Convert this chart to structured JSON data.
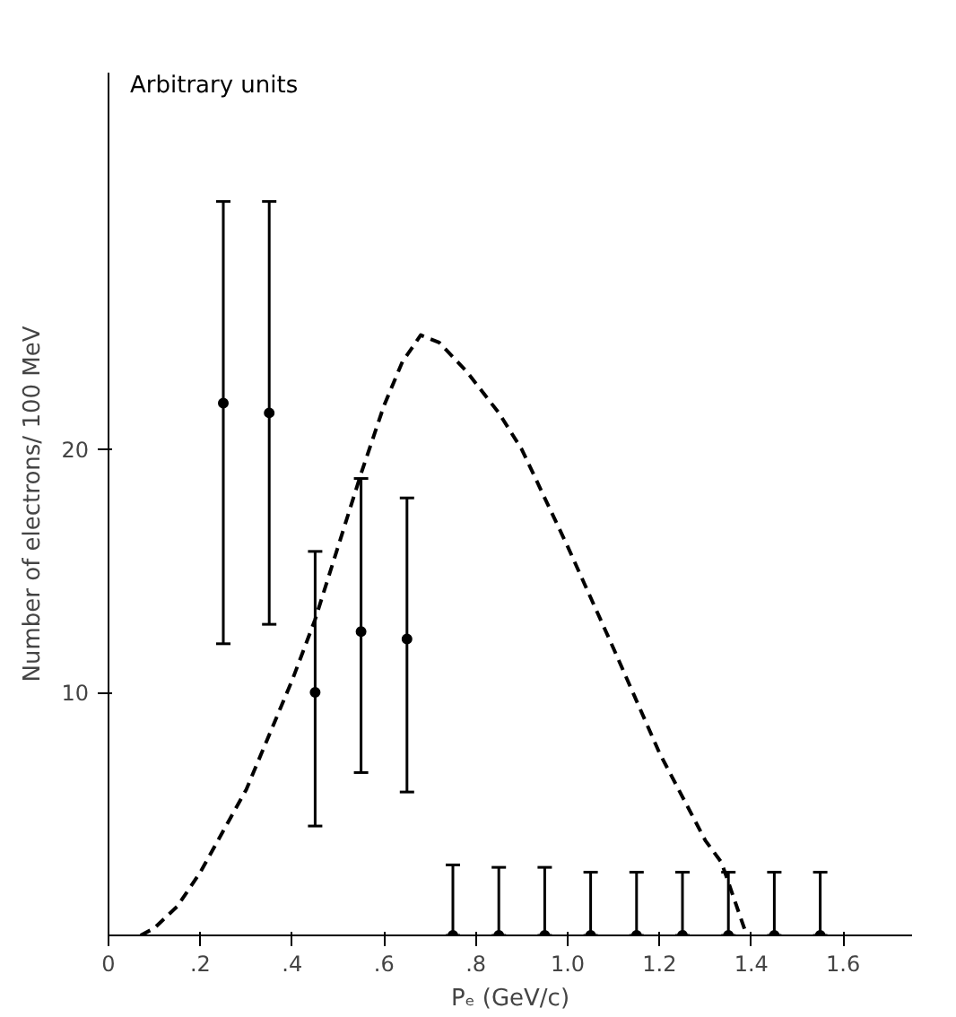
{
  "chart_data": {
    "type": "scatter",
    "xlabel": "Pₑ (GeV/c)",
    "ylabel": "Number of electrons/ 100 MeV",
    "annotations": [
      "Arbitrary units"
    ],
    "xlim": [
      0,
      1.75
    ],
    "ylim": [
      0,
      35.5
    ],
    "xticks": [
      0,
      {
        "value": 0.2,
        "label": ".2"
      },
      {
        "value": 0.4,
        "label": ".4"
      },
      {
        "value": 0.6,
        "label": ".6"
      },
      {
        "value": 0.8,
        "label": ".8"
      },
      {
        "value": 1.0,
        "label": "1.0"
      },
      {
        "value": 1.2,
        "label": "1.2"
      },
      {
        "value": 1.4,
        "label": "1.4"
      },
      {
        "value": 1.6,
        "label": "1.6"
      }
    ],
    "yticks": [
      10,
      20
    ],
    "grid": false,
    "marker": "circle",
    "series": [
      {
        "color": "#000000",
        "x": [
          0.25,
          0.35,
          0.45,
          0.55,
          0.65,
          0.75,
          0.85,
          0.95,
          1.05,
          1.15,
          1.25,
          1.35,
          1.45,
          1.55
        ],
        "values": [
          21.9,
          21.5,
          10.0,
          12.5,
          12.2,
          0,
          0,
          0,
          0,
          0,
          0,
          0,
          0,
          0
        ],
        "errors": [
          [
            12.0,
            30.2
          ],
          [
            12.8,
            30.2
          ],
          [
            4.5,
            15.8
          ],
          [
            6.7,
            18.8
          ],
          [
            5.9,
            18.0
          ],
          [
            0,
            2.9
          ],
          [
            0,
            2.8
          ],
          [
            0,
            2.8
          ],
          [
            0,
            2.6
          ],
          [
            0,
            2.6
          ],
          [
            0,
            2.6
          ],
          [
            0,
            2.6
          ],
          [
            0,
            2.6
          ],
          [
            0,
            2.6
          ]
        ]
      },
      {
        "type": "line",
        "color": "#000000",
        "line_style": "dashed",
        "marker": "none",
        "x": [
          0.07,
          0.1,
          0.15,
          0.2,
          0.3,
          0.4,
          0.45,
          0.5,
          0.55,
          0.6,
          0.64,
          0.68,
          0.72,
          0.78,
          0.85,
          0.9,
          1.0,
          1.1,
          1.2,
          1.3,
          1.335,
          1.39
        ],
        "values": [
          0,
          0.3,
          1.2,
          2.6,
          6.0,
          10.5,
          13.0,
          16.0,
          19.0,
          21.8,
          23.6,
          24.7,
          24.4,
          23.2,
          21.5,
          20.0,
          16.0,
          11.8,
          7.5,
          3.9,
          3.0,
          0
        ]
      }
    ]
  }
}
